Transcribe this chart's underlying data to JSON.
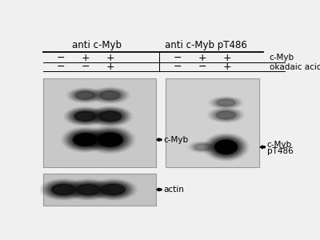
{
  "bg_color": "#f0f0f0",
  "title_left": "anti c-Myb",
  "title_right": "anti c-Myb pT486",
  "row1_left": [
    "−",
    "+",
    "+"
  ],
  "row1_right": [
    "−",
    "+",
    "+"
  ],
  "row1_label": "c-Myb",
  "row2_left": [
    "−",
    "−",
    "+"
  ],
  "row2_right": [
    "−",
    "−",
    "+"
  ],
  "row2_label": "okadaic acid",
  "label_cmyb": "c-Myb",
  "label_pt486_1": "c-Myb",
  "label_pt486_2": "pT486",
  "label_actin": "actin",
  "fig_width": 4.0,
  "fig_height": 3.0,
  "left_panel_bg": "#c8c8c8",
  "right_panel_bg": "#d0d0d0",
  "actin_panel_bg": "#c2c2c2"
}
